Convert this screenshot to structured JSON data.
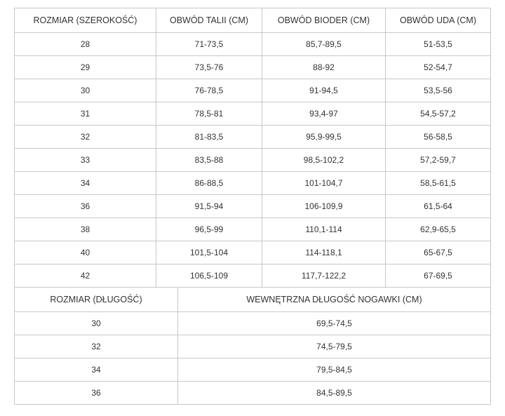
{
  "width_table": {
    "headers": [
      "ROZMIAR (SZEROKOŚĆ)",
      "OBWÓD TALII (CM)",
      "OBWÓD BIODER (CM)",
      "OBWÓD UDA (CM)"
    ],
    "rows": [
      [
        "28",
        "71-73,5",
        "85,7-89,5",
        "51-53,5"
      ],
      [
        "29",
        "73,5-76",
        "88-92",
        "52-54,7"
      ],
      [
        "30",
        "76-78,5",
        "91-94,5",
        "53,5-56"
      ],
      [
        "31",
        "78,5-81",
        "93,4-97",
        "54,5-57,2"
      ],
      [
        "32",
        "81-83,5",
        "95,9-99,5",
        "56-58,5"
      ],
      [
        "33",
        "83,5-88",
        "98,5-102,2",
        "57,2-59,7"
      ],
      [
        "34",
        "86-88,5",
        "101-104,7",
        "58,5-61,5"
      ],
      [
        "36",
        "91,5-94",
        "106-109,9",
        "61,5-64"
      ],
      [
        "38",
        "96,5-99",
        "110,1-114",
        "62,9-65,5"
      ],
      [
        "40",
        "101,5-104",
        "114-118,1",
        "65-67,5"
      ],
      [
        "42",
        "106,5-109",
        "117,7-122,2",
        "67-69,5"
      ]
    ]
  },
  "length_table": {
    "headers": [
      "ROZMIAR (DŁUGOŚĆ)",
      "WEWNĘTRZNA DŁUGOŚĆ NOGAWKI (CM)"
    ],
    "rows": [
      [
        "30",
        "69,5-74,5"
      ],
      [
        "32",
        "74,5-79,5"
      ],
      [
        "34",
        "79,5-84,5"
      ],
      [
        "36",
        "84,5-89,5"
      ]
    ]
  }
}
